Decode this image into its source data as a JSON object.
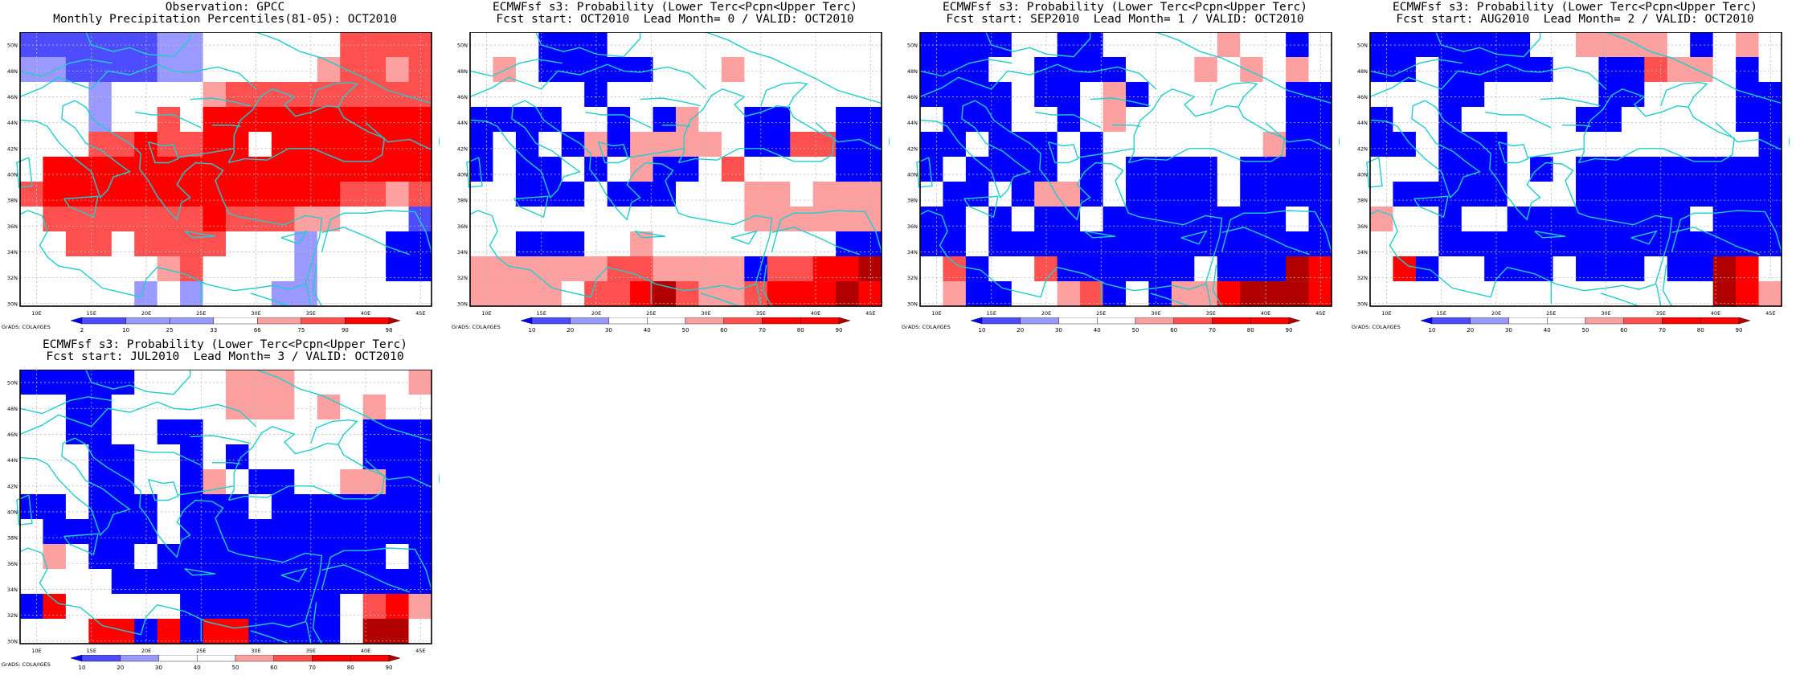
{
  "lat_labels": [
    "50N",
    "48N",
    "46N",
    "44N",
    "42N",
    "40N",
    "38N",
    "36N",
    "34N",
    "32N",
    "30N"
  ],
  "lon_labels": [
    "10E",
    "15E",
    "20E",
    "25E",
    "30E",
    "35E",
    "40E",
    "45E"
  ],
  "credit": "GrADS: COLA/IGES",
  "colors": {
    "B3": "#0000ff",
    "B2": "#4d4dff",
    "B1": "#9999ff",
    "W": "#ffffff",
    "R1": "#ffa0a0",
    "R2": "#ff5050",
    "R3": "#ff0000",
    "R4": "#b20000",
    "coast": "#22cccc",
    "grid": "#bbbbbb",
    "frame": "#000000"
  },
  "panels": [
    {
      "title1": "Observation: GPCC",
      "title2": "Monthly Precipitation Percentiles(81-05): OCT2010",
      "colorbar": {
        "labels": [
          "2",
          "10",
          "25",
          "33",
          "66",
          "75",
          "90",
          "98"
        ],
        "colors": [
          "B3",
          "B2",
          "B1",
          "B1",
          "W",
          "R1",
          "R2",
          "R3",
          "R4"
        ]
      },
      "grid": [
        "B2B2B2B2B2B2B1B1W W W W W W R2R2R2R2",
        "B1B1B2B2B2B2B1B1W W W W W R1R2R2R1R2",
        "W W W B1W W W W R1R2R2R2R2R2R2R2R2R2",
        "W W W B1W W R2W R3R3R3R3R3R3R3R3R3R3",
        "W W W R2R2R3R2R2R3R3W R3R3R3R3R3R3R3",
        "W R3R3R3R3R3R3R3R3R3R3R3R3R3R3R3R3R3",
        "R2R3R3R3R3R3R3R3R3R3R3R3R3R3R2R2R1R2",
        "W R2R2R2R2R2R2R2R3R2R2R2R1R1W W W B2",
        "W W R2R2W R2R2R2R2W W W B1W W W B3B3",
        "W W W W W W R1R2W W W W B1W W W B3B3",
        "W W W W W B1W B1W W W B1B1W W W W W "
      ]
    },
    {
      "title1": "ECMWFsf s3: Probability (Lower Terc<Pcpn<Upper Terc)",
      "title2": "Fcst start: OCT2010  Lead Month= 0 / VALID: OCT2010",
      "colorbar": {
        "labels": [
          "10",
          "20",
          "30",
          "40",
          "50",
          "60",
          "70",
          "80",
          "90"
        ],
        "colors": [
          "B3",
          "B2",
          "B1",
          "W",
          "W",
          "R1",
          "R2",
          "R3",
          "R3",
          "R4"
        ]
      },
      "grid": [
        "W W W B3B3B3W W W W W W W W W W W W ",
        "W R1W B3B3B3B3B3W W W R1W W W W W W ",
        "W W W W W B3W W W W W W W W W W W W ",
        "B3B3B3B3W W B3W B3R1W W B3B3W W B3B3",
        "B3W B3W B3R1B3R1R1R1R1W B3B3R2R2B3B3",
        "B3W B3B3W B3W R1B3B3W R2W W W W B3B3",
        "W W B3B3B3W B3B3B3W W W R1R1W R1R1R1",
        "W W W W W W W W W W W W R1R1R1R1R1R1",
        "W W B3B3B3W W R1W W W W W W W W B3B3",
        "R1R1R1R1R1R1R2R2R1R1R1R1B3R2R2R3R3R4",
        "R1R1R1R1W R2R2R3R4R2R1R1R2R3R3R3R4R3"
      ]
    },
    {
      "title1": "ECMWFsf s3: Probability (Lower Terc<Pcpn<Upper Terc)",
      "title2": "Fcst start: SEP2010  Lead Month= 1 / VALID: OCT2010",
      "colorbar": {
        "labels": [
          "10",
          "20",
          "30",
          "40",
          "50",
          "60",
          "70",
          "80",
          "90"
        ],
        "colors": [
          "B3",
          "B2",
          "B1",
          "W",
          "W",
          "R1",
          "R2",
          "R3",
          "R3",
          "R4"
        ]
      },
      "grid": [
        "B3B3B3B3W W B3B3W W W W W R1W W B3W ",
        "B3B3B3W W B3B3B3B3W W W R1W R1W R1W ",
        "B3B3B3B3W B3B3W R1B3W W W W W W B3B3",
        "W B3B3B3W W B3W R1W W W W W W W B3B3",
        "B3B3W B3B3B3W B3W W W W W W W R1B3B3",
        "B3W B3B3B3B3W B3W B3B3B3B3W B3B3B3B3",
        "W B3B3W B3R1R1B3W B3B3B3B3W B3B3B3B3",
        "B3B3W B3W B3B3W B3B3B3B3B3B3B3B3W B3",
        "B3B3W B3B3B3B3B3B3B3B3B3B3B3B3B3B3B3",
        "W R2B3W W R2B3B3B3B3B3B3W B3B3B3R4R3",
        "W R1B3B3W W R1R2B3W B3R1R1R3R4R4R4R3"
      ]
    },
    {
      "title1": "ECMWFsf s3: Probability (Lower Terc<Pcpn<Upper Terc)",
      "title2": "Fcst start: AUG2010  Lead Month= 2 / VALID: OCT2010",
      "colorbar": {
        "labels": [
          "10",
          "20",
          "30",
          "40",
          "50",
          "60",
          "70",
          "80",
          "90"
        ],
        "colors": [
          "B3",
          "B2",
          "B1",
          "W",
          "W",
          "R1",
          "R2",
          "R3",
          "R3",
          "R4"
        ]
      },
      "grid": [
        "B3B3B3B3B3B3B3W W R1R1R1R1W B3W R1W ",
        "B3B3W B3B3B3B3B3W W B3B3R2R1R1W B3W ",
        "W W W B3B3W W W W W B3B3W W W W B3B3",
        "B3W W B3W W W W W B3B3W W W W W B3B3",
        "B3B3W B3B3B3W W W W W W W W W W W B3",
        "W W W B3B3B3W B3W B3B3B3B3B3B3B3B3B3",
        "W B3B3B3B3B3W W W B3B3B3B3B3B3B3B3B3",
        "R1W W B3W W B3B3B3B3B3B3B3B3W B3B3B3",
        "W W W B3B3B3B3B3B3B3B3B3B3B3B3B3B3B3",
        "W R3B3W W B3B3B3W B3B3B3W B3B3R4R3W ",
        "W W W W W W W W W W W W W W W R4R3R1"
      ]
    },
    {
      "title1": "ECMWFsf s3: Probability (Lower Terc<Pcpn<Upper Terc)",
      "title2": "Fcst start: JUL2010  Lead Month= 3 / VALID: OCT2010",
      "colorbar": {
        "labels": [
          "10",
          "20",
          "30",
          "40",
          "50",
          "60",
          "70",
          "80",
          "90"
        ],
        "colors": [
          "B3",
          "B2",
          "B1",
          "W",
          "W",
          "R1",
          "R2",
          "R3",
          "R3",
          "R4"
        ]
      },
      "grid": [
        "B3B3B3B3B3W W W W R1R1R1W W W W W R1",
        "W W B3B3W W W W W R1R1R1W R1W R1W W ",
        "W W B3B3W W B3B3W W W W W W W B3B3B3",
        "W W W B3B3W W B3W B3W W W W W B3B3B3",
        "W W W B3B3W W B3R1W B3B3W W R1R1B3B3",
        "B3B3W B3B3B3W B3B3B3W B3B3B3B3B3B3B3",
        "W B3B3B3B3B3W B3B3B3B3B3B3B3B3B3B3B3",
        "W R1W B3B3W B3B3B3B3B3B3B3B3B3B3W B3",
        "W W W W B3B3B3B3B3B3B3B3B3B3B3B3B3B3",
        "B3R3W W W W W B3B3B3B3B3B3B3W R2R3R1",
        "W W W R3R3B3R3B3R3R3B3B3B3B3W R4R4W "
      ]
    }
  ]
}
